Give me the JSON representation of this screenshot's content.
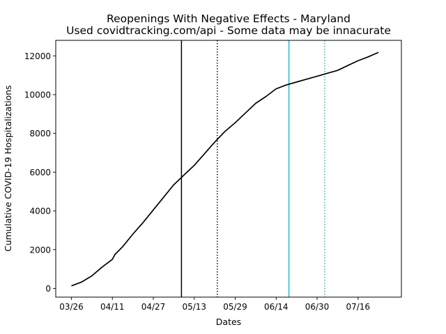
{
  "chart_data": {
    "type": "line",
    "title": "Reopenings With Negative Effects - Maryland",
    "subtitle": "Used covidtracking.com/api - Some data may be innacurate",
    "xlabel": "Dates",
    "ylabel": "Cumulative COVID-19 Hospitalizations",
    "x_tick_labels": [
      "03/26",
      "04/11",
      "04/27",
      "05/13",
      "05/29",
      "06/14",
      "06/30",
      "07/16"
    ],
    "y_ticks": [
      0,
      2000,
      4000,
      6000,
      8000,
      10000,
      12000
    ],
    "ylim": [
      -450,
      12800
    ],
    "grid": false,
    "line_color": "#000000",
    "series": [
      {
        "values": [
          [
            "03/26",
            130
          ],
          [
            "03/30",
            330
          ],
          [
            "04/03",
            650
          ],
          [
            "04/07",
            1100
          ],
          [
            "04/11",
            1500
          ],
          [
            "04/12",
            1750
          ],
          [
            "04/15",
            2150
          ],
          [
            "04/19",
            2800
          ],
          [
            "04/23",
            3400
          ],
          [
            "04/27",
            4050
          ],
          [
            "05/01",
            4700
          ],
          [
            "05/05",
            5350
          ],
          [
            "05/09",
            5850
          ],
          [
            "05/13",
            6350
          ],
          [
            "05/17",
            6950
          ],
          [
            "05/21",
            7550
          ],
          [
            "05/25",
            8100
          ],
          [
            "05/29",
            8550
          ],
          [
            "06/02",
            9050
          ],
          [
            "06/06",
            9550
          ],
          [
            "06/10",
            9900
          ],
          [
            "06/14",
            10300
          ],
          [
            "06/18",
            10500
          ],
          [
            "06/22",
            10650
          ],
          [
            "06/26",
            10800
          ],
          [
            "06/30",
            10950
          ],
          [
            "07/04",
            11100
          ],
          [
            "07/08",
            11250
          ],
          [
            "07/12",
            11500
          ],
          [
            "07/16",
            11750
          ],
          [
            "07/20",
            11950
          ],
          [
            "07/24",
            12180
          ]
        ]
      }
    ],
    "vertical_lines": [
      {
        "date": "05/08",
        "color": "#000000",
        "style": "solid"
      },
      {
        "date": "05/22",
        "color": "#000000",
        "style": "dotted"
      },
      {
        "date": "06/19",
        "color": "#17becf",
        "style": "solid"
      },
      {
        "date": "07/03",
        "color": "#17becf",
        "style": "dotted"
      }
    ]
  }
}
